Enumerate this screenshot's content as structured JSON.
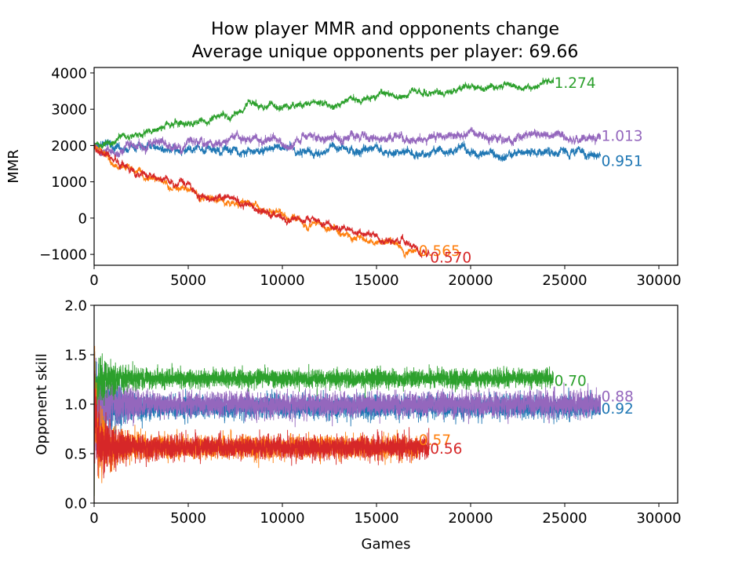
{
  "figure": {
    "title_line1": "How player MMR and opponents change",
    "title_line2": "Average unique opponents per player: 69.66"
  },
  "colors": {
    "green": "#2ca02c",
    "purple": "#9467bd",
    "blue": "#1f77b4",
    "orange": "#ff7f0e",
    "red": "#d62728"
  },
  "chart_data": [
    {
      "type": "line",
      "panel": "top",
      "title": "",
      "xlabel": "",
      "ylabel": "MMR",
      "xlim": [
        0,
        31000
      ],
      "ylim": [
        -1300,
        4150
      ],
      "xticks": [
        0,
        5000,
        10000,
        15000,
        20000,
        25000,
        30000
      ],
      "xtick_labels": [
        "0",
        "5000",
        "10000",
        "15000",
        "20000",
        "25000",
        "30000"
      ],
      "yticks": [
        -1000,
        0,
        1000,
        2000,
        3000,
        4000
      ],
      "ytick_labels": [
        "−1000",
        "0",
        "1000",
        "2000",
        "3000",
        "4000"
      ],
      "series": [
        {
          "color_key": "blue",
          "points": [
            [
              0,
              2000
            ],
            [
              2500,
              1950
            ],
            [
              5000,
              1930
            ],
            [
              7500,
              1900
            ],
            [
              10000,
              1880
            ],
            [
              12500,
              1860
            ],
            [
              15000,
              1830
            ],
            [
              17500,
              1800
            ],
            [
              20000,
              1780
            ],
            [
              22500,
              1750
            ],
            [
              25000,
              1720
            ],
            [
              26900,
              1650
            ]
          ],
          "noise": 90,
          "end_x": 26900,
          "end_y": 1650,
          "end_label": "0.951",
          "label_y": 1580
        },
        {
          "color_key": "purple",
          "points": [
            [
              0,
              2000
            ],
            [
              2500,
              2030
            ],
            [
              5000,
              2060
            ],
            [
              7500,
              2090
            ],
            [
              10000,
              2110
            ],
            [
              12500,
              2130
            ],
            [
              15000,
              2150
            ],
            [
              17500,
              2170
            ],
            [
              20000,
              2190
            ],
            [
              22500,
              2210
            ],
            [
              25000,
              2230
            ],
            [
              26900,
              2200
            ]
          ],
          "noise": 95,
          "end_x": 26900,
          "end_y": 2200,
          "end_label": "1.013",
          "label_y": 2270
        },
        {
          "color_key": "green",
          "points": [
            [
              0,
              2000
            ],
            [
              2500,
              2380
            ],
            [
              5000,
              2640
            ],
            [
              7500,
              2860
            ],
            [
              10000,
              3040
            ],
            [
              12500,
              3200
            ],
            [
              15000,
              3330
            ],
            [
              17500,
              3450
            ],
            [
              20000,
              3560
            ],
            [
              22500,
              3650
            ],
            [
              24400,
              3740
            ]
          ],
          "noise": 70,
          "end_x": 24400,
          "end_y": 3740,
          "end_label": "1.274",
          "label_y": 3730
        },
        {
          "color_key": "orange",
          "points": [
            [
              0,
              1960
            ],
            [
              1000,
              1550
            ],
            [
              2500,
              1230
            ],
            [
              5000,
              780
            ],
            [
              7500,
              400
            ],
            [
              10000,
              50
            ],
            [
              12500,
              -300
            ],
            [
              15000,
              -620
            ],
            [
              16500,
              -820
            ],
            [
              17200,
              -950
            ]
          ],
          "noise": 70,
          "end_x": 17200,
          "end_y": -950,
          "end_label": "0.565",
          "label_y": -900
        },
        {
          "color_key": "red",
          "points": [
            [
              0,
              1960
            ],
            [
              1000,
              1560
            ],
            [
              2500,
              1250
            ],
            [
              5000,
              800
            ],
            [
              7500,
              420
            ],
            [
              10000,
              80
            ],
            [
              12500,
              -240
            ],
            [
              15000,
              -530
            ],
            [
              16500,
              -760
            ],
            [
              17800,
              -960
            ]
          ],
          "noise": 75,
          "end_x": 17800,
          "end_y": -960,
          "end_label": "0.570",
          "label_y": -1080
        }
      ]
    },
    {
      "type": "line",
      "panel": "bottom",
      "title": "",
      "xlabel": "Games",
      "ylabel": "Opponent skill",
      "xlim": [
        0,
        31000
      ],
      "ylim": [
        0.0,
        2.0
      ],
      "xticks": [
        0,
        5000,
        10000,
        15000,
        20000,
        25000,
        30000
      ],
      "xtick_labels": [
        "0",
        "5000",
        "10000",
        "15000",
        "20000",
        "25000",
        "30000"
      ],
      "yticks": [
        0.0,
        0.5,
        1.0,
        1.5,
        2.0
      ],
      "ytick_labels": [
        "0.0",
        "0.5",
        "1.0",
        "1.5",
        "2.0"
      ],
      "series": [
        {
          "color_key": "blue",
          "level": 0.97,
          "end_x": 26900,
          "noise": 0.055,
          "end_label": "0.92",
          "label_y": 0.955
        },
        {
          "color_key": "purple",
          "level": 1.0,
          "end_x": 26900,
          "noise": 0.06,
          "end_label": "0.88",
          "label_y": 1.08
        },
        {
          "color_key": "green",
          "level": 1.26,
          "end_x": 24400,
          "noise": 0.045,
          "end_label": "0.70",
          "label_y": 1.24
        },
        {
          "color_key": "orange",
          "level": 0.565,
          "end_x": 17200,
          "noise": 0.055,
          "end_label": "0.57",
          "label_y": 0.64
        },
        {
          "color_key": "red",
          "level": 0.565,
          "end_x": 17800,
          "noise": 0.055,
          "end_label": "0.56",
          "label_y": 0.55
        }
      ]
    }
  ]
}
